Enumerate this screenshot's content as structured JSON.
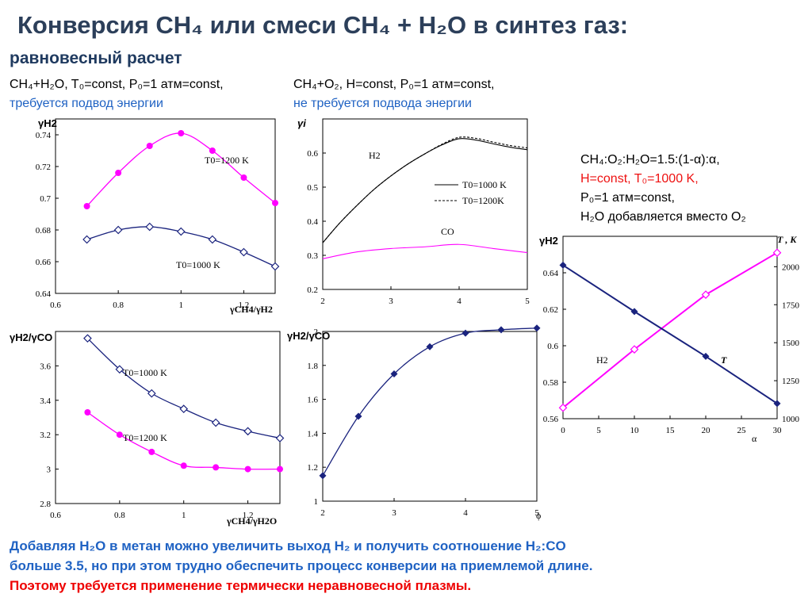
{
  "header": {
    "title": "Конверсия CH₄ или смеси CH₄ + H₂O в синтез газ:",
    "subtitle": "равновесный расчет"
  },
  "caption_left": {
    "line1": "CH₄+H₂O, T₀=const, P₀=1 атм=const,",
    "line2": "требуется подвод энергии"
  },
  "caption_mid": {
    "line1": "CH₄+O₂, H=const, P₀=1 атм=const,",
    "line2": "не требуется подвода энергии"
  },
  "caption_right": {
    "line1": "CH₄:O₂:H₂O=1.5:(1-α):α,",
    "line2": "H=const, T₀=1000 K,",
    "line3": "P₀=1 атм=const,",
    "line4": "H₂O добавляется вместо O₂"
  },
  "footer": {
    "line1": "Добавляя H₂O  в метан можно увеличить выход H₂ и получить соотношение H₂:CO",
    "line2": "больше 3.5, но при этом трудно обеспечить процесс конверсии на приемлемой длине.",
    "line3": "Поэтому требуется применение термически неравновесной плазмы."
  },
  "colors": {
    "navy": "#1a237e",
    "magenta": "#ff00ff",
    "title": "#2c3f5a",
    "blue_text": "#1f62c3",
    "red_text": "#e11111"
  },
  "chart_data": [
    {
      "id": "c1",
      "type": "line",
      "ylabel": "γH2",
      "xlabel": "γCH4/γH2",
      "xlim": [
        0.6,
        1.3
      ],
      "ylim": [
        0.64,
        0.75
      ],
      "xticks": [
        "0.6",
        "0.8",
        "1",
        "1.2"
      ],
      "yticks": [
        "0.64",
        "0.66",
        "0.68",
        "0.7",
        "0.72",
        "0.74"
      ],
      "series": [
        {
          "name": "T0=1200 K",
          "color": "#ff00ff",
          "marker": "dot",
          "x": [
            0.7,
            0.8,
            0.9,
            1.0,
            1.1,
            1.2,
            1.3
          ],
          "y": [
            0.695,
            0.716,
            0.733,
            0.741,
            0.73,
            0.713,
            0.697
          ]
        },
        {
          "name": "T0=1000 K",
          "color": "#1a237e",
          "marker": "diamond-open",
          "x": [
            0.7,
            0.8,
            0.9,
            1.0,
            1.1,
            1.2,
            1.3
          ],
          "y": [
            0.674,
            0.68,
            0.682,
            0.679,
            0.674,
            0.666,
            0.657
          ]
        }
      ]
    },
    {
      "id": "c2",
      "type": "line",
      "ylabel": "γi",
      "xlabel": "",
      "xlim": [
        2,
        5
      ],
      "ylim": [
        0.2,
        0.7
      ],
      "xticks": [
        "2",
        "3",
        "4",
        "5"
      ],
      "yticks": [
        "0.2",
        "0.3",
        "0.4",
        "0.5",
        "0.6"
      ],
      "legend": [
        "T0=1000 K",
        "T0=1200K"
      ],
      "annotations": [
        "H2",
        "CO"
      ],
      "series": [
        {
          "name": "H2, T0=1000 K",
          "color": "#000000",
          "dash": false,
          "x": [
            2,
            2.25,
            2.5,
            2.75,
            3,
            3.25,
            3.5,
            3.75,
            4,
            4.25,
            4.5,
            4.75,
            5
          ],
          "y": [
            0.337,
            0.395,
            0.446,
            0.493,
            0.533,
            0.568,
            0.598,
            0.624,
            0.642,
            0.638,
            0.627,
            0.617,
            0.61
          ]
        },
        {
          "name": "H2, T0=1200K",
          "color": "#000000",
          "dash": true,
          "x": [
            2,
            2.25,
            2.5,
            2.75,
            3,
            3.25,
            3.5,
            3.75,
            4,
            4.25,
            4.5,
            4.75,
            5
          ],
          "y": [
            0.337,
            0.395,
            0.446,
            0.493,
            0.533,
            0.568,
            0.598,
            0.626,
            0.646,
            0.643,
            0.632,
            0.622,
            0.615
          ]
        },
        {
          "name": "CO",
          "color": "#ff00ff",
          "dash": false,
          "x": [
            2,
            2.5,
            3,
            3.5,
            4,
            4.5,
            5
          ],
          "y": [
            0.29,
            0.31,
            0.32,
            0.325,
            0.332,
            0.32,
            0.308
          ]
        }
      ]
    },
    {
      "id": "c3",
      "type": "line",
      "ylabel": "γH2/γCO",
      "xlabel": "γCH4/γH2O",
      "xlim": [
        0.6,
        1.3
      ],
      "ylim": [
        2.8,
        3.8
      ],
      "xticks": [
        "0.6",
        "0.8",
        "1",
        "1.2"
      ],
      "yticks": [
        "2.8",
        "3",
        "3.2",
        "3.4",
        "3.6"
      ],
      "series": [
        {
          "name": "T0=1000 K",
          "color": "#1a237e",
          "marker": "diamond-open",
          "x": [
            0.7,
            0.8,
            0.9,
            1.0,
            1.1,
            1.2,
            1.3
          ],
          "y": [
            3.76,
            3.58,
            3.44,
            3.35,
            3.27,
            3.22,
            3.18
          ]
        },
        {
          "name": "T0=1200 K",
          "color": "#ff00ff",
          "marker": "dot",
          "x": [
            0.7,
            0.8,
            0.9,
            1.0,
            1.1,
            1.2,
            1.3
          ],
          "y": [
            3.33,
            3.2,
            3.1,
            3.02,
            3.01,
            3.0,
            3.0
          ]
        }
      ]
    },
    {
      "id": "c4",
      "type": "line",
      "ylabel": "γH2/γCO",
      "xlabel": "ϕ",
      "xlim": [
        2,
        5
      ],
      "ylim": [
        1,
        2
      ],
      "xticks": [
        "2",
        "3",
        "4",
        "5"
      ],
      "yticks": [
        "1",
        "1.2",
        "1.4",
        "1.6",
        "1.8",
        "2"
      ],
      "series": [
        {
          "name": "",
          "color": "#1a237e",
          "marker": "diamond",
          "x": [
            2,
            2.5,
            3,
            3.5,
            4,
            4.5,
            5
          ],
          "y": [
            1.15,
            1.5,
            1.75,
            1.91,
            1.99,
            2.01,
            2.02
          ]
        }
      ]
    },
    {
      "id": "c5",
      "type": "line",
      "ylabel": "γH2",
      "ylabel_right": "T , K",
      "xlabel": "α",
      "xlim": [
        0,
        30
      ],
      "ylim": [
        0.56,
        0.66
      ],
      "ylim_right": [
        1000,
        2200
      ],
      "xticks": [
        "0",
        "5",
        "10",
        "15",
        "20",
        "25",
        "30"
      ],
      "yticks": [
        "0.56",
        "0.58",
        "0.6",
        "0.62",
        "0.64"
      ],
      "yticks_right": [
        "1000",
        "1250",
        "1500",
        "1750",
        "2000"
      ],
      "annotations": [
        "H2",
        "T"
      ],
      "series": [
        {
          "name": "H2",
          "color": "#ff00ff",
          "marker": "diamond-open",
          "axis": "left",
          "x": [
            0,
            10,
            20,
            30
          ],
          "y": [
            0.566,
            0.598,
            0.628,
            0.651
          ]
        },
        {
          "name": "T",
          "color": "#1a237e",
          "marker": "diamond",
          "axis": "right",
          "x": [
            0,
            10,
            20,
            30
          ],
          "y": [
            2010,
            1705,
            1410,
            1100
          ]
        }
      ]
    }
  ]
}
